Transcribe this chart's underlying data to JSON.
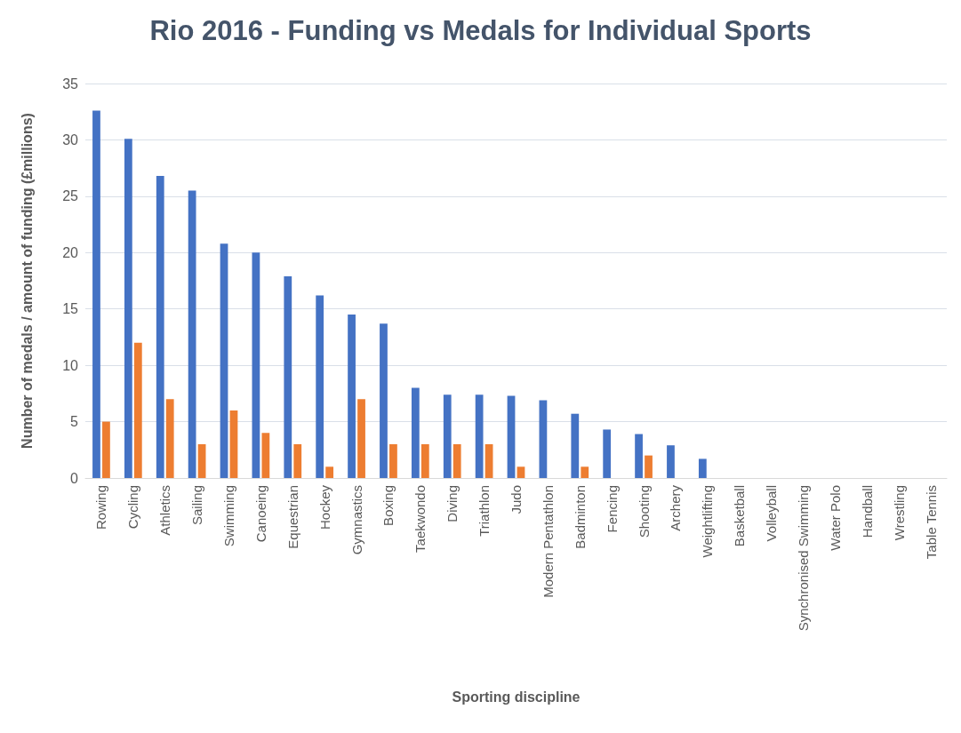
{
  "chart_data": {
    "type": "bar",
    "title": "Rio 2016 - Funding vs Medals for Individual Sports",
    "xlabel": "Sporting discipline",
    "ylabel": "Number of medals / amount of funding (£millions)",
    "categories": [
      "Rowing",
      "Cycling",
      "Athletics",
      "Sailing",
      "Swimming",
      "Canoeing",
      "Equestrian",
      "Hockey",
      "Gymnastics",
      "Boxing",
      "Taekwondo",
      "Diving",
      "Triathlon",
      "Judo",
      "Modern Pentathlon",
      "Badminton",
      "Fencing",
      "Shooting",
      "Archery",
      "Weightlifting",
      "Basketball",
      "Volleyball",
      "Synchronised Swimming",
      "Water Polo",
      "Handball",
      "Wrestling",
      "Table Tennis"
    ],
    "series": [
      {
        "color": "#4472c4",
        "values": [
          32.6,
          30.1,
          26.8,
          25.5,
          20.8,
          20.0,
          17.9,
          16.2,
          14.5,
          13.7,
          8.0,
          7.4,
          7.4,
          7.3,
          6.9,
          5.7,
          4.3,
          3.9,
          2.9,
          1.7,
          0,
          0,
          0,
          0,
          0,
          0,
          0
        ]
      },
      {
        "color": "#ed7d31",
        "values": [
          5,
          12,
          7,
          3,
          6,
          4,
          3,
          1,
          7,
          3,
          3,
          3,
          3,
          1,
          0,
          1,
          0,
          2,
          0,
          0,
          0,
          0,
          0,
          0,
          0,
          0,
          0
        ]
      }
    ],
    "ylim": [
      0,
      35
    ],
    "yticks": [
      0,
      5,
      10,
      15,
      20,
      25,
      30,
      35
    ],
    "grid": "y"
  }
}
